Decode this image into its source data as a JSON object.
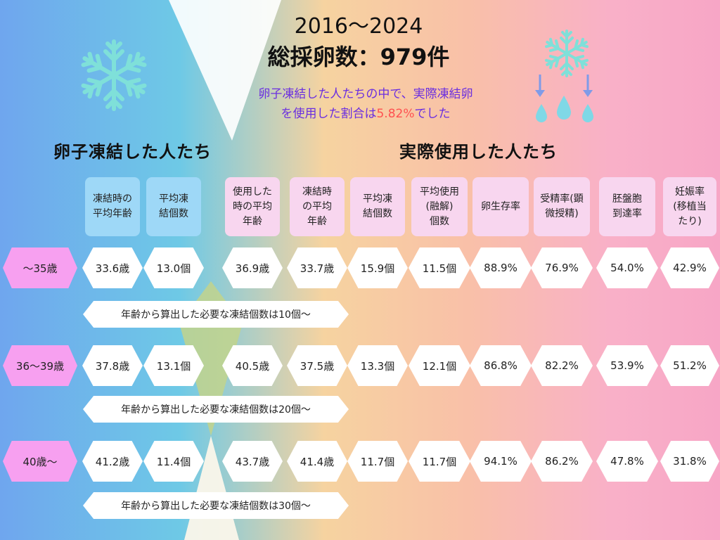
{
  "title_line1": "2016～2024",
  "title_line2": "総採卵数：979件",
  "subtitle": {
    "line1": "卵子凍結した人たちの中で、実際凍結卵",
    "line2_prefix": "を使用した割合は",
    "line2_pct": "5.82%",
    "line2_suffix": "でした"
  },
  "sections": {
    "frozen": "卵子凍結した人たち",
    "used": "実際使用した人たち"
  },
  "headers": {
    "frozen": [
      "凍結時の\n平均年齢",
      "平均凍\n結個数"
    ],
    "used": [
      "使用した\n時の平均\n年齢",
      "凍結時\nの平均\n年齢",
      "平均凍\n結個数",
      "平均使用\n(融解)\n個数",
      "卵生存率",
      "受精率(顕\n微授精)",
      "胚盤胞\n到達率",
      "妊娠率\n(移植当\nたり)"
    ]
  },
  "rows": [
    {
      "label": "～35歳",
      "frozen": [
        "33.6歳",
        "13.0個"
      ],
      "used": [
        "36.9歳",
        "33.7歳",
        "15.9個",
        "11.5個",
        "88.9%",
        "76.9%",
        "54.0%",
        "42.9%"
      ],
      "note": "年齢から算出した必要な凍結個数は10個～"
    },
    {
      "label": "36～39歳",
      "frozen": [
        "37.8歳",
        "13.1個"
      ],
      "used": [
        "40.5歳",
        "37.5歳",
        "13.3個",
        "12.1個",
        "86.8%",
        "82.2%",
        "53.9%",
        "51.2%"
      ],
      "note": "年齢から算出した必要な凍結個数は20個～"
    },
    {
      "label": "40歳～",
      "frozen": [
        "41.2歳",
        "11.4個"
      ],
      "used": [
        "43.7歳",
        "41.4歳",
        "11.7個",
        "11.7個",
        "94.1%",
        "86.2%",
        "47.8%",
        "31.8%"
      ],
      "note": "年齢から算出した必要な凍結個数は30個～"
    }
  ],
  "icons": [
    "snowflake-icon",
    "thaw-snowflake-icon"
  ],
  "colors": {
    "subtitle": "#6a2ee0",
    "highlight": "#ff5050",
    "row_label": "#f7a0f0",
    "header_blue": "#9ed8f7",
    "header_pink": "#f8d6ef"
  }
}
